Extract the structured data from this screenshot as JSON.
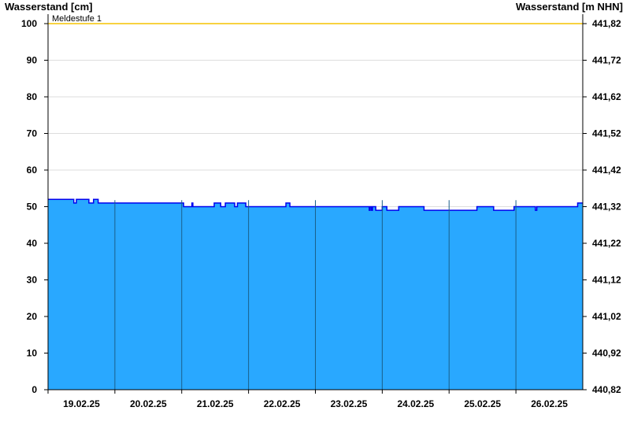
{
  "chart_data": {
    "type": "area",
    "ylabel_left": "Wasserstand [cm]",
    "ylabel_right": "Wasserstand [m NHN]",
    "ylim": [
      0,
      100
    ],
    "yticks_left": [
      "0",
      "10",
      "20",
      "30",
      "40",
      "50",
      "60",
      "70",
      "80",
      "90",
      "100"
    ],
    "yticks_right": [
      "440,82",
      "440,92",
      "441,02",
      "441,12",
      "441,22",
      "441,32",
      "441,42",
      "441,52",
      "441,62",
      "441,72",
      "441,82"
    ],
    "xlim": [
      "2025-02-19T00:00",
      "2025-02-27T00:00"
    ],
    "xtick_labels": [
      "19.02.25",
      "20.02.25",
      "21.02.25",
      "22.02.25",
      "23.02.25",
      "24.02.25",
      "25.02.25",
      "26.02.25"
    ],
    "grid": true,
    "threshold": {
      "label": "Meldestufe 1",
      "value": 100,
      "color": "#f5c400"
    },
    "colors": {
      "fill": "#29a8ff",
      "line": "#0000ee",
      "grid": "#dddddd",
      "day_separator": "#1a5f8a"
    },
    "series": [
      {
        "step_points": [
          [
            "2025-02-19T00:00",
            52
          ],
          [
            "2025-02-19T09:15",
            51
          ],
          [
            "2025-02-19T10:10",
            52
          ],
          [
            "2025-02-19T14:40",
            51
          ],
          [
            "2025-02-19T16:20",
            52
          ],
          [
            "2025-02-19T18:00",
            51
          ],
          [
            "2025-02-21T00:40",
            50
          ],
          [
            "2025-02-21T03:40",
            51
          ],
          [
            "2025-02-21T04:00",
            50
          ],
          [
            "2025-02-21T11:40",
            51
          ],
          [
            "2025-02-21T14:00",
            50
          ],
          [
            "2025-02-21T15:40",
            51
          ],
          [
            "2025-02-21T19:00",
            50
          ],
          [
            "2025-02-21T20:00",
            51
          ],
          [
            "2025-02-21T23:00",
            50
          ],
          [
            "2025-02-22T13:25",
            51
          ],
          [
            "2025-02-22T14:50",
            50
          ],
          [
            "2025-02-23T19:20",
            49
          ],
          [
            "2025-02-23T19:40",
            50
          ],
          [
            "2025-02-23T20:10",
            49
          ],
          [
            "2025-02-23T20:30",
            50
          ],
          [
            "2025-02-23T21:40",
            49
          ],
          [
            "2025-02-24T00:00",
            50
          ],
          [
            "2025-02-24T01:40",
            49
          ],
          [
            "2025-02-24T05:55",
            50
          ],
          [
            "2025-02-24T15:00",
            49
          ],
          [
            "2025-02-25T10:00",
            50
          ],
          [
            "2025-02-25T16:00",
            49
          ],
          [
            "2025-02-25T23:20",
            50
          ],
          [
            "2025-02-26T07:00",
            49
          ],
          [
            "2025-02-26T07:30",
            50
          ],
          [
            "2025-02-26T22:10",
            51
          ],
          [
            "2025-02-26T23:59",
            51
          ]
        ]
      }
    ]
  }
}
